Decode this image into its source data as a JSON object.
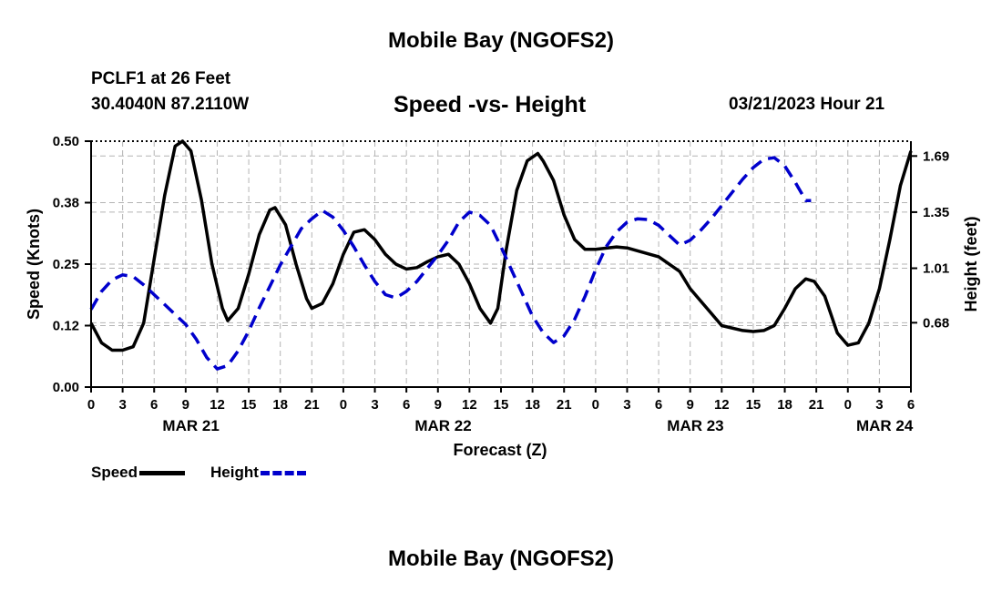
{
  "header": {
    "title": "Mobile Bay (NGOFS2)",
    "station": "PCLF1 at 26 Feet",
    "coords": "30.4040N  87.2110W",
    "subtitle": "Speed -vs- Height",
    "datetime": "03/21/2023 Hour 21"
  },
  "footer": {
    "title": "Mobile Bay (NGOFS2)"
  },
  "legend": {
    "speed_label": "Speed",
    "height_label": "Height"
  },
  "colors": {
    "speed": "#000000",
    "height": "#0000cc",
    "grid": "#b4b4b4"
  },
  "chart_data": {
    "type": "line",
    "title": "Speed -vs- Height",
    "xlabel": "Forecast (Z)",
    "ylabel_left": "Speed (Knots)",
    "ylabel_right": "Height (feet)",
    "x_range_hours": [
      0,
      78
    ],
    "x_tick_hours": [
      0,
      3,
      6,
      9,
      12,
      15,
      18,
      21,
      24,
      27,
      30,
      33,
      36,
      39,
      42,
      45,
      48,
      51,
      54,
      57,
      60,
      63,
      66,
      69,
      72,
      75,
      78
    ],
    "x_tick_labels": [
      "0",
      "3",
      "6",
      "9",
      "12",
      "15",
      "18",
      "21",
      "0",
      "3",
      "6",
      "9",
      "12",
      "15",
      "18",
      "21",
      "0",
      "3",
      "6",
      "9",
      "12",
      "15",
      "18",
      "21",
      "0",
      "3",
      "6"
    ],
    "date_labels": [
      {
        "hour": 9.5,
        "label": "MAR 21"
      },
      {
        "hour": 33.5,
        "label": "MAR 22"
      },
      {
        "hour": 57.5,
        "label": "MAR 23"
      },
      {
        "hour": 75.5,
        "label": "MAR 24"
      }
    ],
    "left_axis": {
      "ylim": [
        0.0,
        0.5
      ],
      "ticks": [
        0.0,
        0.125,
        0.25,
        0.375,
        0.5
      ],
      "tick_labels": [
        "0.00",
        "0.12",
        "0.25",
        "0.38",
        "0.50"
      ]
    },
    "right_axis": {
      "ylim": [
        0.29,
        1.78
      ],
      "ticks": [
        0.68,
        1.01,
        1.35,
        1.69
      ],
      "tick_labels": [
        "0.68",
        "1.01",
        "1.35",
        "1.69"
      ]
    },
    "grid": true,
    "legend_position": "bottom-left",
    "series": [
      {
        "name": "Speed",
        "axis": "left",
        "style": "solid",
        "points": [
          [
            0,
            0.13
          ],
          [
            1,
            0.09
          ],
          [
            2,
            0.075
          ],
          [
            3,
            0.075
          ],
          [
            4,
            0.082
          ],
          [
            5,
            0.13
          ],
          [
            6,
            0.26
          ],
          [
            7,
            0.39
          ],
          [
            8,
            0.49
          ],
          [
            8.7,
            0.5
          ],
          [
            9.5,
            0.48
          ],
          [
            10.5,
            0.38
          ],
          [
            11.5,
            0.25
          ],
          [
            12.5,
            0.16
          ],
          [
            13,
            0.135
          ],
          [
            14,
            0.16
          ],
          [
            15,
            0.23
          ],
          [
            16,
            0.31
          ],
          [
            17,
            0.36
          ],
          [
            17.5,
            0.365
          ],
          [
            18.5,
            0.33
          ],
          [
            19.5,
            0.25
          ],
          [
            20.5,
            0.18
          ],
          [
            21,
            0.16
          ],
          [
            22,
            0.17
          ],
          [
            23,
            0.21
          ],
          [
            24,
            0.27
          ],
          [
            25,
            0.315
          ],
          [
            26,
            0.32
          ],
          [
            27,
            0.3
          ],
          [
            28,
            0.27
          ],
          [
            29,
            0.25
          ],
          [
            30,
            0.24
          ],
          [
            31,
            0.243
          ],
          [
            32,
            0.255
          ],
          [
            33,
            0.265
          ],
          [
            34,
            0.27
          ],
          [
            35,
            0.25
          ],
          [
            36,
            0.21
          ],
          [
            37,
            0.16
          ],
          [
            38,
            0.13
          ],
          [
            38.7,
            0.16
          ],
          [
            39.5,
            0.28
          ],
          [
            40.5,
            0.4
          ],
          [
            41.5,
            0.46
          ],
          [
            42.5,
            0.475
          ],
          [
            43,
            0.46
          ],
          [
            44,
            0.42
          ],
          [
            45,
            0.35
          ],
          [
            46,
            0.3
          ],
          [
            47,
            0.28
          ],
          [
            48,
            0.28
          ],
          [
            50,
            0.285
          ],
          [
            51,
            0.283
          ],
          [
            52,
            0.277
          ],
          [
            54,
            0.265
          ],
          [
            56,
            0.235
          ],
          [
            57,
            0.2
          ],
          [
            59,
            0.15
          ],
          [
            60,
            0.125
          ],
          [
            62,
            0.115
          ],
          [
            63,
            0.113
          ],
          [
            64,
            0.115
          ],
          [
            65,
            0.125
          ],
          [
            66,
            0.16
          ],
          [
            67,
            0.2
          ],
          [
            68,
            0.22
          ],
          [
            68.8,
            0.215
          ],
          [
            69.8,
            0.185
          ],
          [
            71,
            0.11
          ],
          [
            72,
            0.085
          ],
          [
            73,
            0.09
          ],
          [
            74,
            0.13
          ],
          [
            75,
            0.2
          ],
          [
            76,
            0.3
          ],
          [
            77,
            0.41
          ],
          [
            78,
            0.48
          ]
        ]
      },
      {
        "name": "Height",
        "axis": "right",
        "style": "dashed",
        "points": [
          [
            0,
            0.76
          ],
          [
            1,
            0.87
          ],
          [
            2,
            0.94
          ],
          [
            3,
            0.97
          ],
          [
            4,
            0.96
          ],
          [
            5,
            0.91
          ],
          [
            6,
            0.85
          ],
          [
            7,
            0.79
          ],
          [
            8,
            0.73
          ],
          [
            9,
            0.67
          ],
          [
            10,
            0.58
          ],
          [
            11,
            0.47
          ],
          [
            12,
            0.4
          ],
          [
            13,
            0.42
          ],
          [
            14,
            0.51
          ],
          [
            15,
            0.63
          ],
          [
            16,
            0.77
          ],
          [
            17,
            0.9
          ],
          [
            18,
            1.03
          ],
          [
            19,
            1.14
          ],
          [
            20,
            1.25
          ],
          [
            21,
            1.31
          ],
          [
            22,
            1.36
          ],
          [
            23,
            1.32
          ],
          [
            24,
            1.24
          ],
          [
            25,
            1.14
          ],
          [
            26,
            1.03
          ],
          [
            27,
            0.93
          ],
          [
            28,
            0.85
          ],
          [
            29,
            0.83
          ],
          [
            30,
            0.87
          ],
          [
            31,
            0.93
          ],
          [
            32,
            1.01
          ],
          [
            33,
            1.09
          ],
          [
            34,
            1.18
          ],
          [
            35,
            1.29
          ],
          [
            36,
            1.35
          ],
          [
            37,
            1.33
          ],
          [
            38,
            1.27
          ],
          [
            39,
            1.14
          ],
          [
            40,
            1.0
          ],
          [
            41,
            0.86
          ],
          [
            42,
            0.72
          ],
          [
            43,
            0.62
          ],
          [
            44,
            0.56
          ],
          [
            45,
            0.6
          ],
          [
            46,
            0.7
          ],
          [
            47,
            0.84
          ],
          [
            48,
            1.0
          ],
          [
            49,
            1.14
          ],
          [
            50,
            1.23
          ],
          [
            51,
            1.29
          ],
          [
            52,
            1.31
          ],
          [
            53,
            1.305
          ],
          [
            54,
            1.27
          ],
          [
            55,
            1.21
          ],
          [
            56,
            1.15
          ],
          [
            57,
            1.18
          ],
          [
            58,
            1.24
          ],
          [
            59,
            1.31
          ],
          [
            60,
            1.39
          ],
          [
            61,
            1.47
          ],
          [
            62,
            1.55
          ],
          [
            63,
            1.62
          ],
          [
            64,
            1.67
          ],
          [
            65,
            1.68
          ],
          [
            66,
            1.63
          ],
          [
            67,
            1.53
          ],
          [
            68,
            1.42
          ],
          [
            68.5,
            1.42
          ]
        ]
      }
    ]
  }
}
